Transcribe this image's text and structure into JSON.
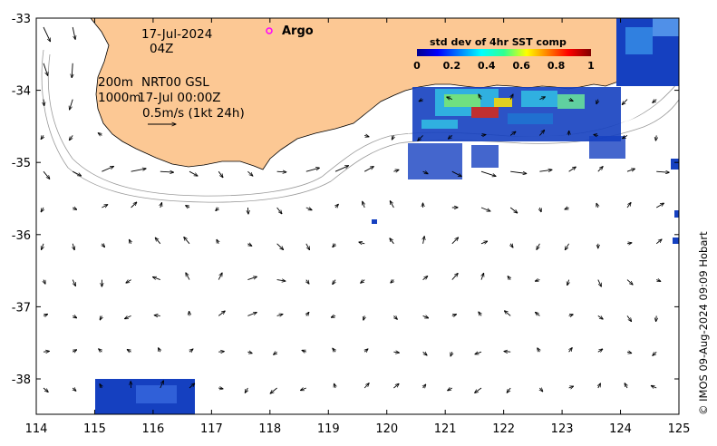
{
  "map": {
    "date": "17-Jul-2024",
    "time": "04Z",
    "depth_line1": "200m",
    "depth_line2": "1000m",
    "product": "NRT00 GSL",
    "product_time": "17-Jul 00:00Z",
    "scale_label": "0.5m/s (1kt 24h)",
    "argo_label": "Argo",
    "credit": "© IMOS 09-Aug-2024 09:09 Hobart",
    "x_ticks": [
      "114",
      "115",
      "116",
      "117",
      "118",
      "119",
      "120",
      "121",
      "122",
      "123",
      "124",
      "125"
    ],
    "y_ticks": [
      "-33",
      "-34",
      "-35",
      "-36",
      "-37",
      "-38"
    ],
    "lon_range": [
      114,
      125
    ],
    "lat_range": [
      -38.5,
      -33
    ],
    "land_color": "#fcc894",
    "current_vectors": "black arrows",
    "sst_speckle_color": "#1540c0"
  },
  "legend": {
    "title": "std dev of 4hr SST comp",
    "ticks": [
      "0",
      "0.2",
      "0.4",
      "0.6",
      "0.8",
      "1"
    ],
    "colormap": "jet"
  }
}
